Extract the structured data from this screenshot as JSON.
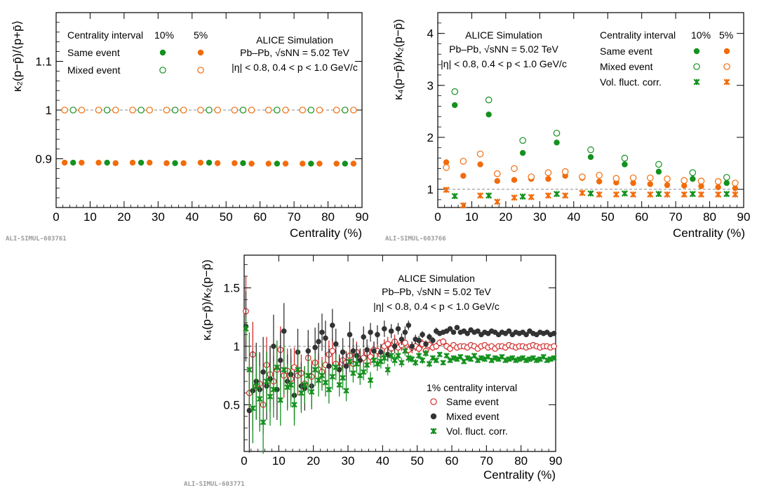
{
  "colors": {
    "green": "#14911e",
    "orange": "#f26c0c",
    "red": "#d42a2a",
    "black": "#333333",
    "ref": "#888888"
  },
  "chart_data": [
    {
      "type": "scatter",
      "id": "ALI-SIMUL-603761",
      "ylabel": "κ₂(p−p̄)/⟨p+p̄⟩",
      "xlabel": "Centrality (%)",
      "xlim": [
        0,
        90
      ],
      "ylim": [
        0.8,
        1.2
      ],
      "xticks": [
        0,
        10,
        20,
        30,
        40,
        50,
        60,
        70,
        80,
        90
      ],
      "yticks": [
        0.9,
        1,
        1.1
      ],
      "ytick_labels": [
        "0.9",
        "1",
        "1.1"
      ],
      "legend": {
        "header": "Centrality interval",
        "col1": "10%",
        "col2": "5%",
        "rows": [
          "Same event",
          "Mixed event"
        ]
      },
      "text": [
        "ALICE Simulation",
        "Pb–Pb, √sNN = 5.02 TeV",
        "|η| < 0.8, 0.4 < p < 1.0 GeV/c"
      ],
      "series": [
        {
          "name": "Same event 10%",
          "style": "green-filled",
          "x": [
            5,
            15,
            25,
            35,
            45,
            55,
            65,
            75,
            85
          ],
          "y": [
            0.892,
            0.892,
            0.892,
            0.891,
            0.892,
            0.891,
            0.89,
            0.89,
            0.89
          ]
        },
        {
          "name": "Same event 5%",
          "style": "orange-filled",
          "x": [
            2.5,
            7.5,
            12.5,
            17.5,
            22.5,
            27.5,
            32.5,
            37.5,
            42.5,
            47.5,
            52.5,
            57.5,
            62.5,
            67.5,
            72.5,
            77.5,
            82.5,
            87.5
          ],
          "y": [
            0.892,
            0.892,
            0.892,
            0.891,
            0.892,
            0.892,
            0.891,
            0.891,
            0.892,
            0.891,
            0.891,
            0.89,
            0.89,
            0.89,
            0.89,
            0.89,
            0.89,
            0.89
          ]
        },
        {
          "name": "Mixed event 10%",
          "style": "green-open",
          "x": [
            5,
            15,
            25,
            35,
            45,
            55,
            65,
            75,
            85
          ],
          "y": [
            1,
            1,
            1,
            1,
            1,
            1,
            1,
            1,
            1
          ]
        },
        {
          "name": "Mixed event 5%",
          "style": "orange-open",
          "x": [
            2.5,
            7.5,
            12.5,
            17.5,
            22.5,
            27.5,
            32.5,
            37.5,
            42.5,
            47.5,
            52.5,
            57.5,
            62.5,
            67.5,
            72.5,
            77.5,
            82.5,
            87.5
          ],
          "y": [
            1,
            1,
            1,
            1,
            1,
            1,
            1,
            1,
            1,
            1,
            1,
            1,
            1,
            1,
            1,
            1,
            1,
            1
          ]
        }
      ],
      "reference_line": 1
    },
    {
      "type": "scatter",
      "id": "ALI-SIMUL-603766",
      "ylabel": "κ₄(p−p̄)/κ₂(p−p̄)",
      "xlabel": "Centrality (%)",
      "xlim": [
        0,
        90
      ],
      "ylim": [
        0.65,
        4.4
      ],
      "xticks": [
        0,
        10,
        20,
        30,
        40,
        50,
        60,
        70,
        80,
        90
      ],
      "yticks": [
        1,
        2,
        3,
        4
      ],
      "ytick_labels": [
        "1",
        "2",
        "3",
        "4"
      ],
      "legend": {
        "header": "Centrality interval",
        "col1": "10%",
        "col2": "5%",
        "rows": [
          "Same event",
          "Mixed event",
          "Vol. fluct. corr."
        ]
      },
      "text": [
        "ALICE Simulation",
        "Pb–Pb, √sNN = 5.02 TeV",
        "|η| < 0.8, 0.4 < p < 1.0 GeV/c"
      ],
      "series": [
        {
          "name": "Same event 10%",
          "style": "green-filled",
          "x": [
            5,
            15,
            25,
            35,
            45,
            55,
            65,
            75,
            85
          ],
          "y": [
            2.62,
            2.44,
            1.7,
            1.9,
            1.62,
            1.48,
            1.34,
            1.2,
            1.12
          ]
        },
        {
          "name": "Mixed event 10%",
          "style": "green-open",
          "x": [
            5,
            15,
            25,
            35,
            45,
            55,
            65,
            75,
            85
          ],
          "y": [
            2.88,
            2.72,
            1.94,
            2.08,
            1.76,
            1.6,
            1.48,
            1.32,
            1.23
          ]
        },
        {
          "name": "Vol. fluct. corr. 10%",
          "style": "green-star",
          "x": [
            5,
            15,
            25,
            35,
            45,
            55,
            65,
            75,
            85
          ],
          "y": [
            0.87,
            0.88,
            0.86,
            0.91,
            0.92,
            0.92,
            0.91,
            0.91,
            0.91
          ]
        },
        {
          "name": "Same event 5%",
          "style": "orange-filled",
          "x": [
            2.5,
            7.5,
            12.5,
            17.5,
            22.5,
            27.5,
            32.5,
            37.5,
            42.5,
            47.5,
            52.5,
            57.5,
            62.5,
            67.5,
            72.5,
            77.5,
            82.5,
            87.5
          ],
          "y": [
            1.52,
            1.26,
            1.48,
            1.16,
            1.18,
            1.2,
            1.2,
            1.26,
            1.22,
            1.15,
            1.13,
            1.12,
            1.1,
            1.08,
            1.07,
            1.06,
            1.04,
            1.02
          ]
        },
        {
          "name": "Mixed event 5%",
          "style": "orange-open",
          "x": [
            2.5,
            7.5,
            12.5,
            17.5,
            22.5,
            27.5,
            32.5,
            37.5,
            42.5,
            47.5,
            52.5,
            57.5,
            62.5,
            67.5,
            72.5,
            77.5,
            82.5,
            87.5
          ],
          "y": [
            1.42,
            1.54,
            1.68,
            1.3,
            1.4,
            1.24,
            1.32,
            1.34,
            1.24,
            1.27,
            1.21,
            1.22,
            1.22,
            1.2,
            1.17,
            1.16,
            1.15,
            1.12
          ]
        },
        {
          "name": "Vol. fluct. corr. 5%",
          "style": "orange-star",
          "x": [
            2.5,
            7.5,
            12.5,
            17.5,
            22.5,
            27.5,
            32.5,
            37.5,
            42.5,
            47.5,
            52.5,
            57.5,
            62.5,
            67.5,
            72.5,
            77.5,
            82.5,
            87.5
          ],
          "y": [
            0.99,
            0.69,
            0.88,
            0.76,
            0.84,
            0.85,
            0.88,
            0.88,
            0.93,
            0.9,
            0.9,
            0.9,
            0.9,
            0.9,
            0.9,
            0.9,
            0.9,
            0.9
          ]
        }
      ],
      "reference_line": 1
    },
    {
      "type": "scatter",
      "id": "ALI-SIMUL-603771",
      "ylabel": "κ₄(p−p̄)/κ₂(p−p̄)",
      "xlabel": "Centrality (%)",
      "xlim": [
        0,
        90
      ],
      "ylim": [
        0.1,
        1.78
      ],
      "xticks": [
        0,
        10,
        20,
        30,
        40,
        50,
        60,
        70,
        80,
        90
      ],
      "yticks": [
        0.5,
        1,
        1.5
      ],
      "ytick_labels": [
        "0.5",
        "1",
        "1.5"
      ],
      "legend": {
        "header": "1% centrality interval",
        "rows": [
          "Same event",
          "Mixed event",
          "Vol. fluct. corr."
        ]
      },
      "text": [
        "ALICE Simulation",
        "Pb–Pb, √sNN = 5.02 TeV",
        "|η| < 0.8, 0.4 < p < 1.0 GeV/c"
      ],
      "x_start": 0.5,
      "x_step": 1,
      "count": 90,
      "series": [
        {
          "name": "Same event",
          "style": "red-open",
          "y": [
            1.3,
            0.6,
            0.93,
            0.66,
            0.68,
            0.5,
            0.84,
            0.76,
            0.7,
            0.8,
            0.97,
            0.75,
            0.79,
            0.72,
            0.82,
            0.75,
            0.77,
            0.68,
            0.9,
            0.74,
            0.86,
            0.8,
            0.78,
            0.84,
            0.93,
            0.96,
            0.85,
            0.82,
            0.88,
            0.86,
            0.92,
            0.85,
            0.95,
            0.89,
            0.9,
            0.94,
            0.91,
            0.97,
            0.96,
            0.93,
            1.0,
            1.02,
            0.98,
            1.04,
            0.99,
            1.01,
            1.03,
            0.97,
            0.99,
            1.0,
            0.98,
            1.02,
            0.96,
            1.01,
            0.99,
            1.0,
            1.03,
            1.04,
            1.0,
            0.98,
            1.01,
            0.99,
            1.0,
            1.0,
            0.99,
            1.01,
            1.0,
            0.98,
            1.0,
            1.01,
            0.99,
            1.0,
            0.98,
            1.0,
            1.0,
            0.99,
            1.01,
            1.0,
            0.99,
            1.0,
            1.0,
            0.99,
            1.0,
            1.01,
            1.0,
            0.99,
            1.0,
            1.0,
            0.99,
            1.0
          ],
          "err": [
            0.3,
            0.3,
            0.28,
            0.27,
            0.26,
            0.25,
            0.24,
            0.23,
            0.22,
            0.21,
            0.2,
            0.19,
            0.19,
            0.18,
            0.17,
            0.17,
            0.16,
            0.15,
            0.15,
            0.14,
            0.14,
            0.13,
            0.13,
            0.12,
            0.12,
            0.11,
            0.11,
            0.1,
            0.1,
            0.1,
            0.09,
            0.09,
            0.09,
            0.08,
            0.08,
            0.08,
            0.07,
            0.07,
            0.07,
            0.07,
            0.06,
            0.06,
            0.06,
            0.06,
            0.05,
            0.05,
            0.05,
            0.05,
            0.05,
            0.04,
            0.04,
            0.04,
            0.04,
            0.04,
            0.03,
            0.03,
            0.03,
            0.03,
            0.03,
            0.03,
            0.02,
            0.02,
            0.02,
            0.02,
            0.02,
            0.02,
            0.02,
            0.02,
            0.02,
            0.02,
            0.02,
            0.02,
            0.02,
            0.02,
            0.02,
            0.02,
            0.02,
            0.02,
            0.02,
            0.02,
            0.02,
            0.02,
            0.02,
            0.02,
            0.02,
            0.02,
            0.02,
            0.02,
            0.02,
            0.02
          ]
        },
        {
          "name": "Mixed event",
          "style": "black-filled",
          "y": [
            1.17,
            0.45,
            0.62,
            0.7,
            0.63,
            0.78,
            0.66,
            0.72,
            1.0,
            0.63,
            0.88,
            1.13,
            0.7,
            0.76,
            0.58,
            0.95,
            0.66,
            0.64,
            0.96,
            0.66,
            0.99,
            1.04,
            1.12,
            1.07,
            0.83,
            1.18,
            1.02,
            0.8,
            0.95,
            0.83,
            1.1,
            0.96,
            0.92,
            0.88,
            1.08,
            0.97,
            1.12,
            0.96,
            1.1,
            0.95,
            1.15,
            0.93,
            1.13,
            1.0,
            1.15,
            1.06,
            1.12,
            1.18,
            1.0,
            1.06,
            1.05,
            1.1,
            1.02,
            1.08,
            1.05,
            1.13,
            1.11,
            1.12,
            1.13,
            1.15,
            1.12,
            1.16,
            1.12,
            1.13,
            1.11,
            1.14,
            1.12,
            1.13,
            1.1,
            1.12,
            1.11,
            1.13,
            1.12,
            1.1,
            1.12,
            1.11,
            1.13,
            1.1,
            1.12,
            1.11,
            1.12,
            1.1,
            1.13,
            1.11,
            1.1,
            1.12,
            1.11,
            1.12,
            1.1,
            1.11
          ],
          "err": [
            0.3,
            0.36,
            0.34,
            0.33,
            0.32,
            0.3,
            0.29,
            0.28,
            0.27,
            0.26,
            0.25,
            0.24,
            0.23,
            0.22,
            0.21,
            0.2,
            0.2,
            0.19,
            0.18,
            0.18,
            0.17,
            0.16,
            0.16,
            0.15,
            0.15,
            0.14,
            0.13,
            0.13,
            0.12,
            0.12,
            0.11,
            0.11,
            0.1,
            0.1,
            0.09,
            0.09,
            0.08,
            0.08,
            0.08,
            0.07,
            0.07,
            0.06,
            0.06,
            0.06,
            0.05,
            0.05,
            0.05,
            0.04,
            0.04,
            0.04,
            0.04,
            0.03,
            0.03,
            0.03,
            0.03,
            0.03,
            0.02,
            0.02,
            0.02,
            0.02,
            0.02,
            0.02,
            0.02,
            0.02,
            0.02,
            0.02,
            0.02,
            0.02,
            0.02,
            0.02,
            0.02,
            0.02,
            0.02,
            0.02,
            0.02,
            0.02,
            0.02,
            0.02,
            0.02,
            0.02,
            0.02,
            0.02,
            0.02,
            0.02,
            0.02,
            0.02,
            0.02,
            0.02,
            0.02,
            0.02
          ]
        },
        {
          "name": "Vol. fluct. corr.",
          "style": "green-star",
          "y": [
            1.15,
            0.8,
            0.47,
            0.66,
            0.55,
            0.35,
            0.7,
            0.57,
            0.63,
            0.82,
            0.54,
            0.8,
            0.65,
            0.67,
            0.5,
            0.8,
            0.6,
            0.67,
            0.75,
            0.61,
            0.8,
            0.71,
            0.75,
            0.69,
            0.63,
            0.74,
            0.82,
            0.67,
            0.73,
            0.62,
            0.87,
            0.77,
            0.85,
            0.75,
            0.78,
            0.84,
            0.71,
            0.88,
            0.85,
            0.87,
            0.9,
            0.8,
            0.92,
            0.88,
            0.92,
            0.86,
            0.96,
            0.9,
            0.89,
            0.86,
            0.92,
            0.88,
            0.94,
            0.85,
            0.9,
            0.88,
            0.93,
            0.86,
            0.92,
            0.88,
            0.9,
            0.89,
            0.91,
            0.87,
            0.9,
            0.89,
            0.92,
            0.88,
            0.9,
            0.89,
            0.91,
            0.88,
            0.9,
            0.89,
            0.91,
            0.88,
            0.89,
            0.9,
            0.88,
            0.89,
            0.9,
            0.88,
            0.89,
            0.9,
            0.88,
            0.89,
            0.91,
            0.88,
            0.89,
            0.9
          ],
          "err": [
            0.1,
            0.32,
            0.3,
            0.29,
            0.28,
            0.27,
            0.26,
            0.25,
            0.24,
            0.23,
            0.22,
            0.21,
            0.2,
            0.19,
            0.18,
            0.18,
            0.17,
            0.16,
            0.15,
            0.15,
            0.14,
            0.14,
            0.13,
            0.12,
            0.12,
            0.11,
            0.11,
            0.1,
            0.1,
            0.09,
            0.09,
            0.08,
            0.08,
            0.08,
            0.07,
            0.07,
            0.07,
            0.06,
            0.06,
            0.06,
            0.05,
            0.05,
            0.05,
            0.05,
            0.04,
            0.04,
            0.04,
            0.04,
            0.03,
            0.03,
            0.03,
            0.03,
            0.03,
            0.03,
            0.02,
            0.02,
            0.02,
            0.02,
            0.02,
            0.02,
            0.02,
            0.02,
            0.02,
            0.02,
            0.02,
            0.02,
            0.02,
            0.02,
            0.02,
            0.02,
            0.02,
            0.02,
            0.02,
            0.02,
            0.02,
            0.02,
            0.02,
            0.02,
            0.02,
            0.02,
            0.02,
            0.02,
            0.02,
            0.02,
            0.02,
            0.02,
            0.02,
            0.02,
            0.02,
            0.02
          ]
        }
      ],
      "reference_line": 1
    }
  ]
}
